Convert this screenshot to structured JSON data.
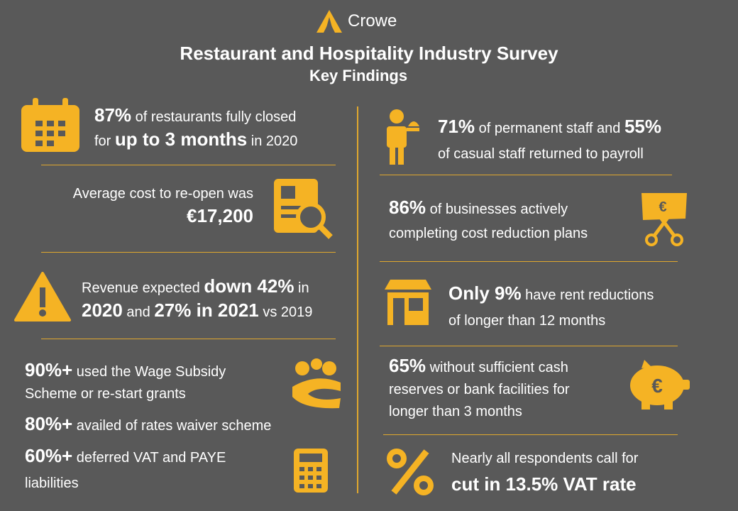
{
  "header": {
    "logo": "Crowe",
    "title": "Restaurant and Hospitality Industry Survey",
    "subtitle": "Key Findings"
  },
  "findings": [
    {
      "lines": [
        [
          {
            "text": "87%",
            "strong": true
          },
          {
            "text": " of restaurants fully closed"
          }
        ],
        [
          {
            "text": "for "
          },
          {
            "text": "up to 3 months",
            "strong": true
          },
          {
            "text": " in 2020"
          }
        ]
      ]
    },
    {
      "lines": [
        [
          {
            "text": "Average cost to re-open was"
          }
        ],
        [
          {
            "text": "€17,200",
            "strong": true
          }
        ]
      ]
    },
    {
      "lines": [
        [
          {
            "text": "Revenue expected "
          },
          {
            "text": "down 42%",
            "strong": true
          },
          {
            "text": " in"
          }
        ],
        [
          {
            "text": "2020",
            "strong": true
          },
          {
            "text": " and "
          },
          {
            "text": "27% in 2021",
            "strong": true
          },
          {
            "text": " vs 2019"
          }
        ]
      ]
    },
    {
      "lines": [
        [
          {
            "text": "90%+",
            "strong": true
          },
          {
            "text": " used the Wage Subsidy"
          }
        ],
        [
          {
            "text": "Scheme or re-start grants"
          }
        ]
      ]
    },
    {
      "lines": [
        [
          {
            "text": "80%+",
            "strong": true
          },
          {
            "text": " availed of rates waiver scheme"
          }
        ]
      ]
    },
    {
      "lines": [
        [
          {
            "text": "60%+",
            "strong": true
          },
          {
            "text": " deferred VAT and PAYE"
          }
        ],
        [
          {
            "text": "liabilities"
          }
        ]
      ]
    },
    {
      "lines": [
        [
          {
            "text": "71%",
            "strong": true
          },
          {
            "text": " of permanent staff and "
          },
          {
            "text": "55%",
            "strong": true
          }
        ],
        [
          {
            "text": "of casual staff returned to payroll"
          }
        ]
      ]
    },
    {
      "lines": [
        [
          {
            "text": "86%",
            "strong": true
          },
          {
            "text": " of businesses actively"
          }
        ],
        [
          {
            "text": "completing cost reduction plans"
          }
        ]
      ]
    },
    {
      "lines": [
        [
          {
            "text": "Only 9%",
            "strong": true
          },
          {
            "text": " have rent reductions"
          }
        ],
        [
          {
            "text": "of longer than 12 months"
          }
        ]
      ]
    },
    {
      "lines": [
        [
          {
            "text": "65%",
            "strong": true
          },
          {
            "text": " without sufficient cash"
          }
        ],
        [
          {
            "text": "reserves or bank facilities for"
          }
        ],
        [
          {
            "text": "longer than 3 months"
          }
        ]
      ]
    },
    {
      "lines": [
        [
          {
            "text": "Nearly all respondents call for"
          }
        ],
        [
          {
            "text": "cut in 13.5% VAT rate",
            "strong": true
          }
        ]
      ]
    }
  ]
}
